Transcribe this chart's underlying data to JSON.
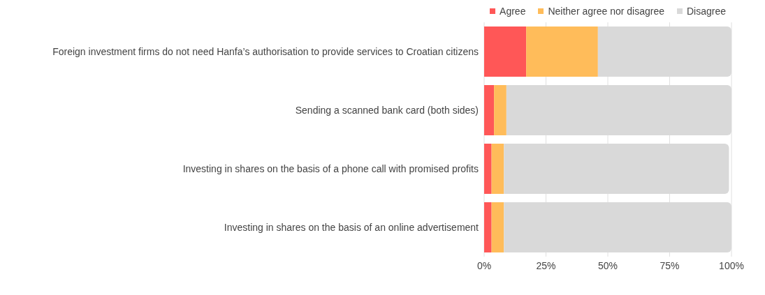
{
  "chart_data": {
    "type": "bar",
    "orientation": "horizontal",
    "stacked": true,
    "categories": [
      "Foreign investment firms do not need Hanfa’s authorisation to provide services to Croatian citizens",
      "Sending a scanned bank card (both sides)",
      "Investing in shares on the basis of a phone call with promised profits",
      "Investing in shares on the basis of an online advertisement"
    ],
    "series": [
      {
        "name": "Agree",
        "color": "#ff5757",
        "values": [
          17,
          4,
          3,
          3
        ]
      },
      {
        "name": "Neither agree nor disagree",
        "color": "#ffbc5a",
        "values": [
          29,
          5,
          5,
          5
        ]
      },
      {
        "name": "Disagree",
        "color": "#d9d9d9",
        "values": [
          54,
          91,
          91,
          92
        ]
      }
    ],
    "xlim": [
      0,
      100
    ],
    "xticks": [
      {
        "value": 0,
        "label": "0%"
      },
      {
        "value": 25,
        "label": "25%"
      },
      {
        "value": 50,
        "label": "50%"
      },
      {
        "value": 75,
        "label": "75%"
      },
      {
        "value": 100,
        "label": "100%"
      }
    ],
    "grid": "x",
    "legend": "top right"
  }
}
